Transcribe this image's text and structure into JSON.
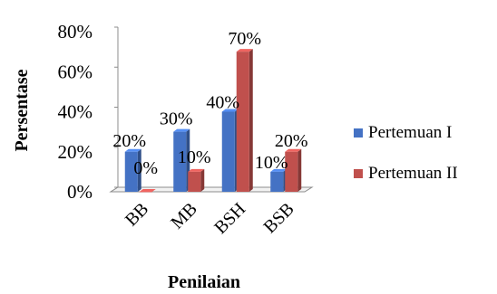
{
  "chart_data": {
    "type": "bar",
    "categories": [
      "BB",
      "MB",
      "BSH",
      "BSB"
    ],
    "series": [
      {
        "name": "Pertemuan I",
        "values": [
          20,
          30,
          40,
          10
        ],
        "labels": [
          "20%",
          "30%",
          "40%",
          "10%"
        ],
        "color": "#4472C4"
      },
      {
        "name": "Pertemuan II",
        "values": [
          0,
          10,
          70,
          20
        ],
        "labels": [
          "0%",
          "10%",
          "70%",
          "20%"
        ],
        "color": "#C0504D"
      }
    ],
    "xlabel": "Penilaian",
    "ylabel": "Persentase",
    "ylim": [
      0,
      80
    ],
    "yticks": [
      0,
      20,
      40,
      60,
      80
    ],
    "ytick_labels": [
      "0%",
      "20%",
      "40%",
      "60%",
      "80%"
    ],
    "legend_position": "right",
    "three_d": true,
    "grid": false
  }
}
